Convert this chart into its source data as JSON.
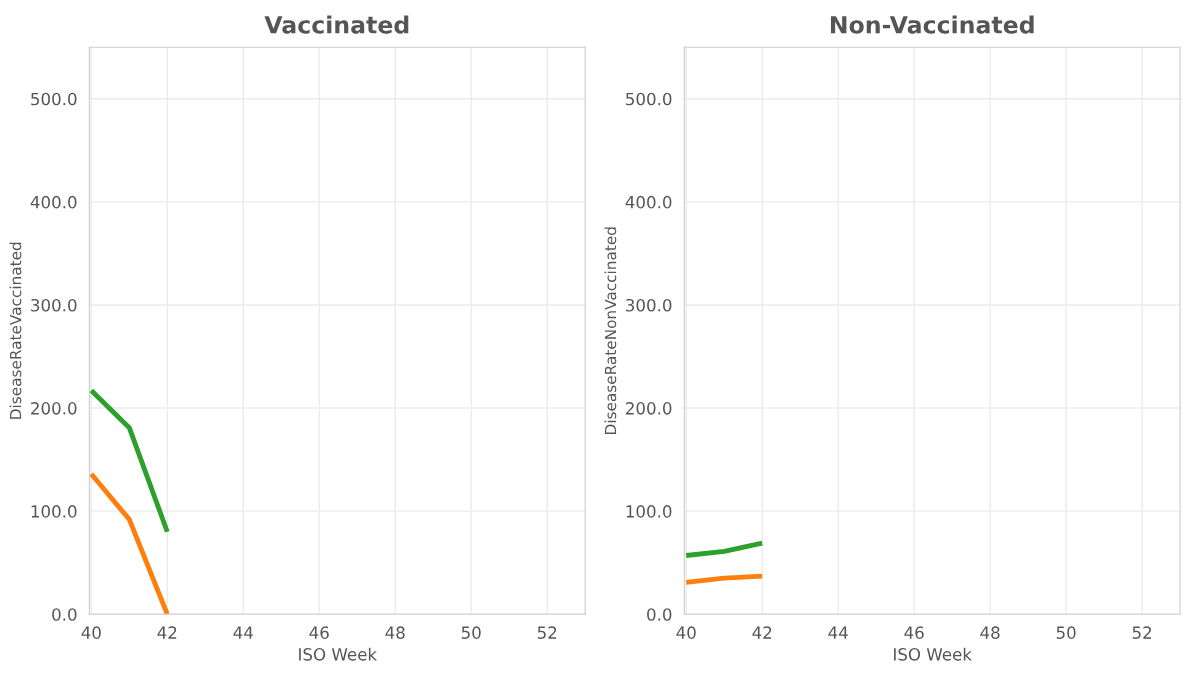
{
  "chart_data": [
    {
      "type": "line",
      "title": "Vaccinated",
      "xlabel": "ISO Week",
      "ylabel": "DiseaseRateVaccinated",
      "x": [
        40,
        41,
        42
      ],
      "series": [
        {
          "color": "#2ca02c",
          "values": [
            217,
            181,
            80
          ]
        },
        {
          "color": "#ff7f0e",
          "values": [
            136,
            92,
            0
          ]
        }
      ],
      "xlim": [
        39.95,
        53
      ],
      "xticks": [
        40,
        42,
        44,
        46,
        48,
        50,
        52
      ],
      "ylim": [
        0,
        550
      ],
      "yticks": [
        {
          "value": 0,
          "label": "0.0"
        },
        {
          "value": 100,
          "label": "100.0"
        },
        {
          "value": 200,
          "label": "200.0"
        },
        {
          "value": 300,
          "label": "300.0"
        },
        {
          "value": 400,
          "label": "400.0"
        },
        {
          "value": 500,
          "label": "500.0"
        }
      ],
      "grid": true,
      "marker": "none",
      "line_style": "solid"
    },
    {
      "type": "line",
      "title": "Non-Vaccinated",
      "xlabel": "ISO Week",
      "ylabel": "DiseaseRateNonVaccinated",
      "x": [
        40,
        41,
        42
      ],
      "series": [
        {
          "color": "#2ca02c",
          "values": [
            57,
            61,
            69
          ]
        },
        {
          "color": "#ff7f0e",
          "values": [
            31,
            35,
            37
          ]
        }
      ],
      "xlim": [
        39.95,
        53
      ],
      "xticks": [
        40,
        42,
        44,
        46,
        48,
        50,
        52
      ],
      "ylim": [
        0,
        550
      ],
      "yticks": [
        {
          "value": 0,
          "label": "0.0"
        },
        {
          "value": 100,
          "label": "100.0"
        },
        {
          "value": 200,
          "label": "200.0"
        },
        {
          "value": 300,
          "label": "300.0"
        },
        {
          "value": 400,
          "label": "400.0"
        },
        {
          "value": 500,
          "label": "500.0"
        }
      ],
      "grid": true,
      "marker": "none",
      "line_style": "solid"
    }
  ]
}
